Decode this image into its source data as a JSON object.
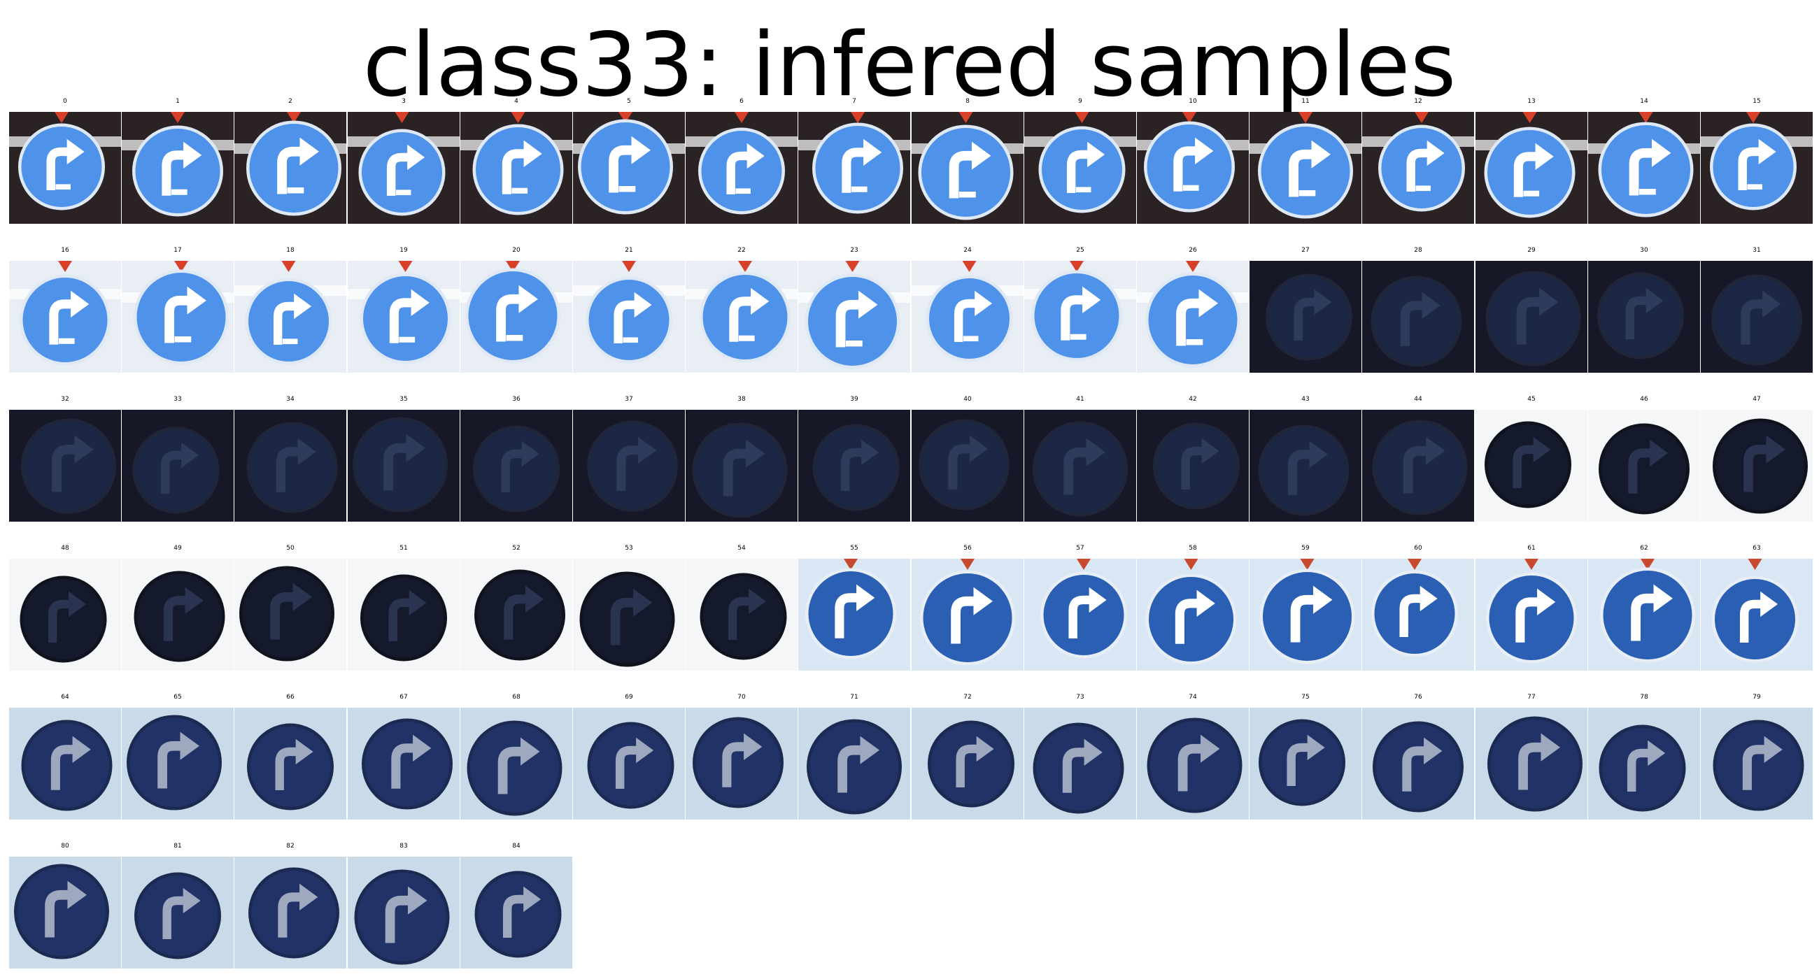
{
  "figure": {
    "title": "class33: infered samples"
  },
  "samples": {
    "labels": [
      "0",
      "1",
      "2",
      "3",
      "4",
      "5",
      "6",
      "7",
      "8",
      "9",
      "10",
      "11",
      "12",
      "13",
      "14",
      "15",
      "16",
      "17",
      "18",
      "19",
      "20",
      "21",
      "22",
      "23",
      "24",
      "25",
      "26",
      "27",
      "28",
      "29",
      "30",
      "31",
      "32",
      "33",
      "34",
      "35",
      "36",
      "37",
      "38",
      "39",
      "40",
      "41",
      "42",
      "43",
      "44",
      "45",
      "46",
      "47",
      "48",
      "49",
      "50",
      "51",
      "52",
      "53",
      "54",
      "55",
      "56",
      "57",
      "58",
      "59",
      "60",
      "61",
      "62",
      "63",
      "64",
      "65",
      "66",
      "67",
      "68",
      "69",
      "70",
      "71",
      "72",
      "73",
      "74",
      "75",
      "76",
      "77",
      "78",
      "79",
      "80",
      "81",
      "82",
      "83",
      "84"
    ],
    "icon": "turn-right-ahead-sign-icon",
    "groups": [
      {
        "from": 0,
        "to": 15,
        "tone": "bright",
        "bg": "#2b2224",
        "disc": "#4f92ea",
        "arrow": "#ffffff",
        "rim": "#dfe8f5",
        "top_marker": "#d8402a"
      },
      {
        "from": 16,
        "to": 26,
        "tone": "bright",
        "bg": "#e9eef4",
        "disc": "#4f92ea",
        "arrow": "#ffffff",
        "rim": "#dfe8f5",
        "top_marker": "#d8402a"
      },
      {
        "from": 27,
        "to": 44,
        "tone": "dark",
        "bg": "#161827",
        "disc": "#1b2744",
        "arrow": "#2f3b5a",
        "rim": "#20263a",
        "top_marker": ""
      },
      {
        "from": 45,
        "to": 54,
        "tone": "dark",
        "bg": "#f5f6f8",
        "disc": "#141a2c",
        "arrow": "#2a3450",
        "rim": "#10131e",
        "top_marker": ""
      },
      {
        "from": 55,
        "to": 63,
        "tone": "bright",
        "bg": "#d9e6f4",
        "disc": "#2a5fb4",
        "arrow": "#ffffff",
        "rim": "#e8eef6",
        "top_marker": "#c84a2e"
      },
      {
        "from": 64,
        "to": 84,
        "tone": "muted",
        "bg": "#c9dbe8",
        "disc": "#213366",
        "arrow": "#9ea8bf",
        "rim": "#1c2a52",
        "top_marker": ""
      }
    ]
  }
}
